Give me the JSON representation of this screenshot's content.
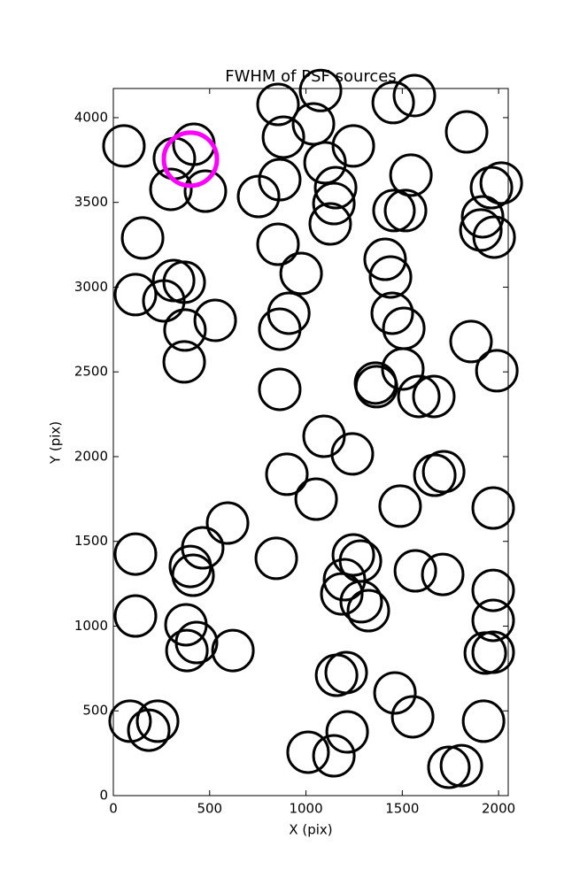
{
  "chart_data": {
    "type": "scatter",
    "title": "FWHM of PSF sources",
    "x_label": "X (pix)",
    "y_label": "Y (pix)",
    "xlim": [
      0,
      2050
    ],
    "ylim": [
      0,
      4172
    ],
    "xticks": [
      0,
      500,
      1000,
      1500,
      2000
    ],
    "yticks": [
      0,
      500,
      1000,
      1500,
      2000,
      2500,
      3000,
      3500,
      4000
    ],
    "series": [
      {
        "color": "#000000",
        "x": [
          55,
          317,
          418,
          299,
          478,
          855,
          1039,
          1076,
          883,
          864,
          1099,
          1246,
          754,
          1154,
          1126,
          1145,
          1453,
          1563,
          1834,
          1545,
          1457,
          1517,
          1963,
          2014,
          1917,
          1908,
          1977,
          152,
          855,
          975,
          1411,
          1439,
          313,
          368,
          115,
          262,
          529,
          911,
          864,
          372,
          1448,
          1508,
          368,
          1503,
          1361,
          1366,
          1857,
          1991,
          864,
          1586,
          1664,
          1094,
          1241,
          901,
          1053,
          1669,
          1715,
          1489,
          1972,
          593,
          115,
          464,
          400,
          414,
          846,
          1246,
          1283,
          1200,
          1186,
          1287,
          1324,
          1568,
          1710,
          1972,
          1972,
          115,
          377,
          432,
          382,
          621,
          1931,
          1972,
          1159,
          1209,
          1462,
          1554,
          87,
          230,
          184,
          1214,
          1011,
          1145,
          1922,
          1742,
          1807
        ],
        "values": [
          3833,
          3759,
          3843,
          3577,
          3566,
          4078,
          3963,
          4160,
          3885,
          3634,
          3734,
          3833,
          3535,
          3587,
          3373,
          3493,
          4089,
          4130,
          3916,
          3661,
          3452,
          3452,
          3587,
          3614,
          3415,
          3337,
          3295,
          3290,
          3253,
          3081,
          3164,
          3060,
          3039,
          3029,
          2956,
          2919,
          2804,
          2846,
          2752,
          2747,
          2846,
          2757,
          2559,
          2517,
          2434,
          2413,
          2679,
          2507,
          2397,
          2355,
          2355,
          2120,
          2016,
          1896,
          1749,
          1890,
          1911,
          1708,
          1697,
          1608,
          1425,
          1462,
          1352,
          1300,
          1400,
          1420,
          1384,
          1274,
          1190,
          1144,
          1091,
          1326,
          1305,
          1211,
          1034,
          1060,
          1008,
          903,
          856,
          856,
          841,
          846,
          710,
          726,
          606,
          465,
          439,
          439,
          386,
          376,
          256,
          235,
          439,
          167,
          177
        ]
      },
      {
        "color": "#ff00ff",
        "x": [
          400
        ],
        "values": [
          3755
        ]
      }
    ]
  }
}
